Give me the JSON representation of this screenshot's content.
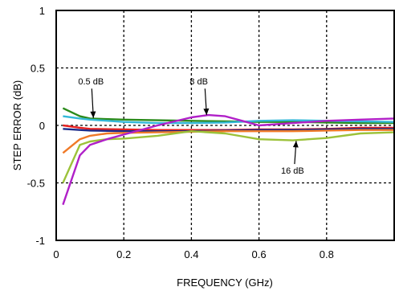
{
  "chart_data": {
    "type": "line",
    "title": "",
    "xlabel": "FREQUENCY (GHz)",
    "ylabel": "STEP ERROR (dB)",
    "xlim": [
      0,
      1
    ],
    "ylim": [
      -1,
      1
    ],
    "x_ticks": [
      0,
      0.2,
      0.4,
      0.6,
      0.8
    ],
    "x_tick_labels": [
      "0",
      "0.2",
      "0.4",
      "0.6",
      "0.8"
    ],
    "y_ticks": [
      1,
      0.5,
      0,
      -0.5,
      -1
    ],
    "y_tick_labels": [
      "1",
      "0.5",
      "0",
      "-0.5",
      "-1"
    ],
    "grid": "dashed",
    "legend": "none",
    "series": [
      {
        "color": "#2a8a1a",
        "x": [
          0.02,
          0.07,
          0.1,
          0.2,
          0.3,
          0.4,
          0.5,
          0.6,
          0.7,
          0.8,
          0.9,
          1.0
        ],
        "y": [
          0.15,
          0.08,
          0.06,
          0.05,
          0.045,
          0.04,
          0.035,
          0.03,
          0.03,
          0.025,
          0.02,
          0.02
        ]
      },
      {
        "color": "#33b8d8",
        "x": [
          0.02,
          0.07,
          0.1,
          0.2,
          0.3,
          0.4,
          0.5,
          0.6,
          0.7,
          0.8,
          0.9,
          1.0
        ],
        "y": [
          0.08,
          0.06,
          0.05,
          0.03,
          0.02,
          0.02,
          0.025,
          0.04,
          0.045,
          0.04,
          0.035,
          0.03
        ]
      },
      {
        "color": "#e62020",
        "x": [
          0.02,
          0.07,
          0.1,
          0.2,
          0.3,
          0.4,
          0.5,
          0.6,
          0.7,
          0.8,
          0.9,
          1.0
        ],
        "y": [
          0.0,
          -0.02,
          -0.03,
          -0.035,
          -0.04,
          -0.04,
          -0.04,
          -0.035,
          -0.035,
          -0.03,
          -0.02,
          -0.02
        ]
      },
      {
        "color": "#1a2a8a",
        "x": [
          0.02,
          0.07,
          0.1,
          0.2,
          0.3,
          0.4,
          0.5,
          0.6,
          0.7,
          0.8,
          0.9,
          1.0
        ],
        "y": [
          -0.03,
          -0.04,
          -0.045,
          -0.05,
          -0.05,
          -0.05,
          -0.045,
          -0.04,
          -0.04,
          -0.035,
          -0.03,
          -0.03
        ]
      },
      {
        "color": "#f07a28",
        "x": [
          0.02,
          0.07,
          0.1,
          0.15,
          0.2,
          0.3,
          0.4,
          0.5,
          0.6,
          0.7,
          0.8,
          0.9,
          1.0
        ],
        "y": [
          -0.24,
          -0.12,
          -0.09,
          -0.07,
          -0.065,
          -0.06,
          -0.055,
          -0.05,
          -0.05,
          -0.05,
          -0.045,
          -0.04,
          -0.04
        ]
      },
      {
        "color": "#9cc23a",
        "x": [
          0.02,
          0.07,
          0.1,
          0.15,
          0.2,
          0.3,
          0.4,
          0.5,
          0.6,
          0.7,
          0.8,
          0.9,
          1.0
        ],
        "y": [
          -0.5,
          -0.17,
          -0.14,
          -0.12,
          -0.115,
          -0.09,
          -0.05,
          -0.07,
          -0.12,
          -0.13,
          -0.11,
          -0.07,
          -0.06
        ]
      },
      {
        "color": "#b020c8",
        "x": [
          0.02,
          0.07,
          0.1,
          0.15,
          0.2,
          0.3,
          0.4,
          0.45,
          0.5,
          0.55,
          0.6,
          0.7,
          0.8,
          0.9,
          1.0
        ],
        "y": [
          -0.69,
          -0.26,
          -0.17,
          -0.12,
          -0.08,
          0.0,
          0.07,
          0.09,
          0.08,
          0.04,
          0.0,
          0.02,
          0.04,
          0.05,
          0.06
        ]
      }
    ],
    "annotations": [
      {
        "text": "0.5 dB",
        "x": 0.065,
        "y": 0.355,
        "arrow_to": [
          0.11,
          0.065
        ]
      },
      {
        "text": "8 dB",
        "x": 0.395,
        "y": 0.355,
        "arrow_to": [
          0.445,
          0.09
        ]
      },
      {
        "text": "16 dB",
        "x": 0.665,
        "y": -0.42,
        "arrow_to": [
          0.71,
          -0.135
        ]
      }
    ]
  }
}
